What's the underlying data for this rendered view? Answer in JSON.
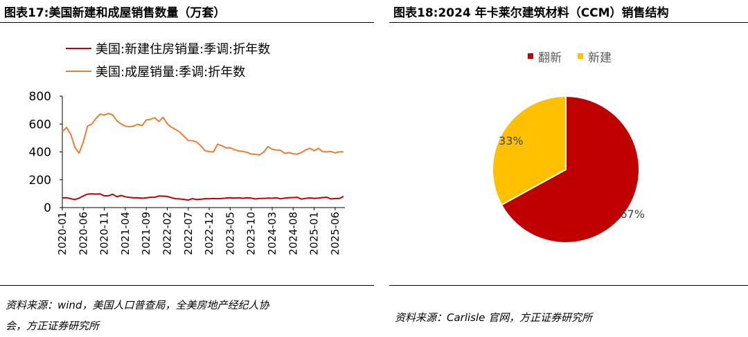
{
  "left": {
    "title": "图表17:美国新建和成屋销售数量（万套）",
    "source_line1": "资料来源：wind，美国人口普查局，全美房地产经纪人协",
    "source_line2": "会，方正证券研究所"
  },
  "right": {
    "title": "图表18:2024 年卡莱尔建筑材料（CCM）销售结构",
    "source": "资料来源：Carlisle 官网，方正证券研究所"
  },
  "chart_data": [
    {
      "type": "line",
      "title": "图表17:美国新建和成屋销售数量（万套）",
      "ylim": [
        0,
        800
      ],
      "yticks": [
        "0",
        "200",
        "400",
        "600",
        "800"
      ],
      "xticks": [
        "2020-01",
        "2020-06",
        "2020-11",
        "2021-04",
        "2021-09",
        "2022-02",
        "2022-07",
        "2022-12",
        "2023-05",
        "2023-10",
        "2024-03",
        "2024-08",
        "2025-01",
        "2025-06"
      ],
      "x_start": "2020-01",
      "x_end": "2025-08",
      "legend_position": "top-left",
      "grid": false,
      "series": [
        {
          "name": "美国:新建住房销量:季调:折年数",
          "color": "#c00000",
          "values": [
            70,
            71,
            64,
            58,
            68,
            84,
            97,
            99,
            97,
            99,
            84,
            85,
            96,
            78,
            87,
            78,
            73,
            70,
            71,
            67,
            70,
            74,
            74,
            83,
            82,
            80,
            71,
            64,
            62,
            59,
            54,
            64,
            58,
            60,
            64,
            63,
            65,
            64,
            65,
            68,
            71,
            68,
            71,
            67,
            71,
            68,
            62,
            66,
            66,
            68,
            67,
            71,
            63,
            68,
            71,
            72,
            73,
            61,
            66,
            70,
            66,
            68,
            72,
            74,
            62,
            65,
            65,
            80
          ]
        },
        {
          "name": "美国:成屋销量:季调:折年数",
          "color": "#ed7d31",
          "values": [
            546,
            576,
            527,
            433,
            391,
            472,
            586,
            600,
            640,
            671,
            665,
            676,
            666,
            622,
            601,
            585,
            580,
            586,
            599,
            588,
            629,
            634,
            646,
            618,
            649,
            602,
            577,
            561,
            541,
            512,
            481,
            480,
            471,
            443,
            409,
            402,
            400,
            455,
            444,
            428,
            430,
            416,
            407,
            404,
            396,
            385,
            382,
            378,
            400,
            438,
            419,
            414,
            411,
            389,
            395,
            386,
            384,
            396,
            415,
            426,
            408,
            426,
            402,
            400,
            403,
            393,
            401,
            400
          ]
        }
      ]
    },
    {
      "type": "pie",
      "title": "图表18:2024 年卡莱尔建筑材料（CCM）销售结构",
      "legend_position": "top",
      "slices": [
        {
          "name": "翻新",
          "value": 67,
          "label": "67%",
          "color": "#c00000"
        },
        {
          "name": "新建",
          "value": 33,
          "label": "33%",
          "color": "#ffc000"
        }
      ]
    }
  ]
}
